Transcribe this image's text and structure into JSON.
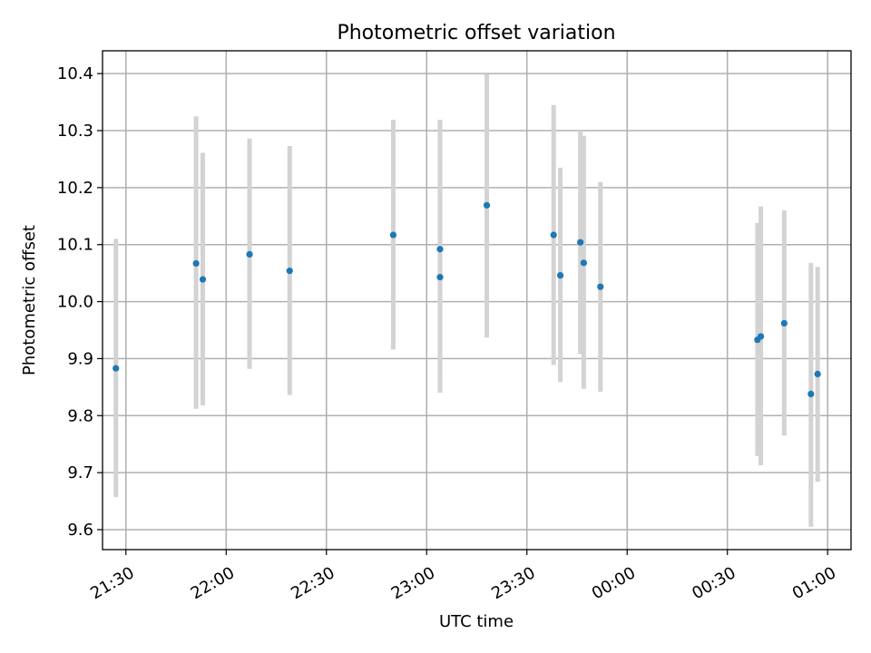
{
  "chart_data": {
    "type": "scatter",
    "title": "Photometric offset variation",
    "xlabel": "UTC time",
    "ylabel": "Photometric offset",
    "x_range": [
      "21:23",
      "01:07"
    ],
    "ylim": [
      9.565,
      10.44
    ],
    "x_ticks": [
      "21:30",
      "22:00",
      "22:30",
      "23:00",
      "23:30",
      "00:00",
      "00:30",
      "01:00"
    ],
    "y_ticks": [
      9.6,
      9.7,
      9.8,
      9.9,
      10.0,
      10.1,
      10.2,
      10.3,
      10.4
    ],
    "y_tick_labels": [
      "9.6",
      "9.7",
      "9.8",
      "9.9",
      "10.0",
      "10.1",
      "10.2",
      "10.3",
      "10.4"
    ],
    "grid": true,
    "marker_color": "#1f77b4",
    "errorbar_color": "#d3d3d3",
    "points": [
      {
        "time": "21:27",
        "y": 9.883,
        "low": 9.657,
        "high": 10.11
      },
      {
        "time": "21:51",
        "y": 10.067,
        "low": 9.812,
        "high": 10.325
      },
      {
        "time": "21:53",
        "y": 10.039,
        "low": 9.818,
        "high": 10.261
      },
      {
        "time": "22:07",
        "y": 10.083,
        "low": 9.882,
        "high": 10.286
      },
      {
        "time": "22:19",
        "y": 10.054,
        "low": 9.836,
        "high": 10.273
      },
      {
        "time": "22:50",
        "y": 10.117,
        "low": 9.916,
        "high": 10.319
      },
      {
        "time": "23:04",
        "y": 10.043,
        "low": 9.84,
        "high": 10.246
      },
      {
        "time": "23:04",
        "y": 10.092,
        "low": 9.865,
        "high": 10.319
      },
      {
        "time": "23:18",
        "y": 10.169,
        "low": 9.937,
        "high": 10.399
      },
      {
        "time": "23:38",
        "y": 10.117,
        "low": 9.889,
        "high": 10.345
      },
      {
        "time": "23:40",
        "y": 10.046,
        "low": 9.859,
        "high": 10.235
      },
      {
        "time": "23:46",
        "y": 10.104,
        "low": 9.908,
        "high": 10.3
      },
      {
        "time": "23:47",
        "y": 10.068,
        "low": 9.847,
        "high": 10.291
      },
      {
        "time": "23:52",
        "y": 10.026,
        "low": 9.842,
        "high": 10.21
      },
      {
        "time": "00:39",
        "y": 9.933,
        "low": 9.729,
        "high": 10.138
      },
      {
        "time": "00:40",
        "y": 9.939,
        "low": 9.713,
        "high": 10.167
      },
      {
        "time": "00:47",
        "y": 9.962,
        "low": 9.765,
        "high": 10.16
      },
      {
        "time": "00:55",
        "y": 9.838,
        "low": 9.605,
        "high": 10.068
      },
      {
        "time": "00:57",
        "y": 9.873,
        "low": 9.684,
        "high": 10.061
      }
    ]
  }
}
